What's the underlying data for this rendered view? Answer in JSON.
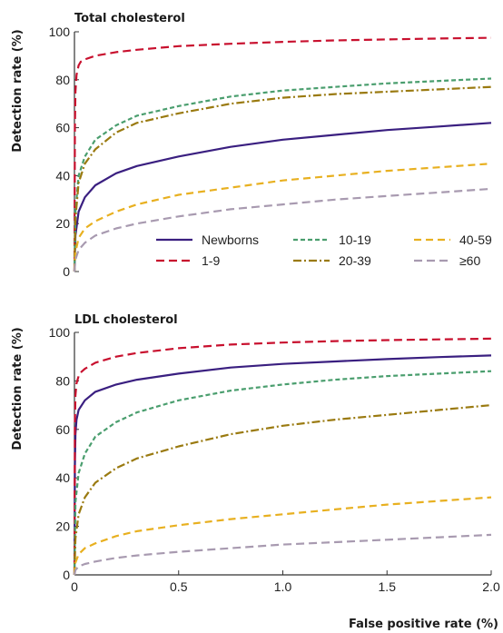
{
  "chart_data": [
    {
      "type": "line",
      "title": "Total cholesterol",
      "xlabel": "",
      "ylabel": "Detection rate (%)",
      "xlim": [
        0,
        2.0
      ],
      "ylim": [
        0,
        100
      ],
      "x_ticks": [
        "0",
        "0.5",
        "1.0",
        "1.5",
        "2.0"
      ],
      "y_ticks": [
        "0",
        "20",
        "40",
        "60",
        "80",
        "100"
      ],
      "grid": false,
      "legend": "bottom-right",
      "series": [
        {
          "name": "Newborns",
          "color": "#3a1f80",
          "dash": "solid",
          "x": [
            0,
            0.005,
            0.02,
            0.05,
            0.1,
            0.2,
            0.3,
            0.5,
            0.75,
            1.0,
            1.25,
            1.5,
            1.75,
            2.0
          ],
          "y": [
            0,
            15,
            25,
            31,
            36,
            41,
            44,
            48,
            52,
            55,
            57,
            59,
            60.5,
            62
          ]
        },
        {
          "name": "1-9",
          "color": "#c8102e",
          "dash": "long-dash",
          "x": [
            0,
            0.002,
            0.005,
            0.01,
            0.02,
            0.03,
            0.05,
            0.1,
            0.2,
            0.3,
            0.5,
            0.75,
            1.0,
            1.25,
            1.5,
            1.75,
            2.0
          ],
          "y": [
            0,
            60,
            75,
            82,
            86,
            87.5,
            88.5,
            90,
            91.5,
            92.5,
            94,
            95,
            95.8,
            96.4,
            96.8,
            97.2,
            97.5
          ]
        },
        {
          "name": "10-19",
          "color": "#4a9e6e",
          "dash": "short-dash",
          "x": [
            0,
            0.005,
            0.02,
            0.05,
            0.1,
            0.2,
            0.3,
            0.5,
            0.75,
            1.0,
            1.25,
            1.5,
            1.75,
            2.0
          ],
          "y": [
            0,
            25,
            40,
            48,
            55,
            61,
            65,
            69,
            73,
            75.5,
            77,
            78.5,
            79.5,
            80.5
          ]
        },
        {
          "name": "20-39",
          "color": "#9a7a10",
          "dash": "dash-dot",
          "x": [
            0,
            0.005,
            0.02,
            0.05,
            0.1,
            0.2,
            0.3,
            0.5,
            0.75,
            1.0,
            1.25,
            1.5,
            1.75,
            2.0
          ],
          "y": [
            0,
            22,
            37,
            45,
            51,
            58,
            62,
            66,
            70,
            72.5,
            74,
            75,
            76,
            77
          ]
        },
        {
          "name": "40-59",
          "color": "#e8b020",
          "dash": "dash",
          "x": [
            0,
            0.005,
            0.02,
            0.05,
            0.1,
            0.2,
            0.3,
            0.5,
            0.75,
            1.0,
            1.25,
            1.5,
            1.75,
            2.0
          ],
          "y": [
            0,
            8,
            14,
            18,
            21,
            25,
            28,
            32,
            35,
            38,
            40,
            42,
            43.5,
            45
          ]
        },
        {
          "name": "≥60",
          "color": "#a89ab0",
          "dash": "long-dash",
          "x": [
            0,
            0.005,
            0.02,
            0.05,
            0.1,
            0.2,
            0.3,
            0.5,
            0.75,
            1.0,
            1.25,
            1.5,
            1.75,
            2.0
          ],
          "y": [
            0,
            5,
            9,
            12,
            15,
            18,
            20,
            23,
            26,
            28,
            30,
            31.5,
            33,
            34.5
          ]
        }
      ]
    },
    {
      "type": "line",
      "title": "LDL cholesterol",
      "xlabel": "False positive rate (%)",
      "ylabel": "Detection rate (%)",
      "xlim": [
        0,
        2.0
      ],
      "ylim": [
        0,
        100
      ],
      "x_ticks": [
        "0",
        "0.5",
        "1.0",
        "1.5",
        "2.0"
      ],
      "y_ticks": [
        "0",
        "20",
        "40",
        "60",
        "80",
        "100"
      ],
      "grid": false,
      "series": [
        {
          "name": "Newborns",
          "color": "#3a1f80",
          "dash": "solid",
          "x": [
            0,
            0.002,
            0.005,
            0.01,
            0.02,
            0.05,
            0.1,
            0.2,
            0.3,
            0.5,
            0.75,
            1.0,
            1.25,
            1.5,
            1.75,
            2.0
          ],
          "y": [
            0,
            45,
            58,
            64,
            68,
            72,
            75.5,
            78.5,
            80.5,
            83,
            85.5,
            87,
            88,
            89,
            89.8,
            90.5
          ]
        },
        {
          "name": "1-9",
          "color": "#c8102e",
          "dash": "long-dash",
          "x": [
            0,
            0.002,
            0.005,
            0.01,
            0.02,
            0.03,
            0.05,
            0.1,
            0.2,
            0.3,
            0.5,
            0.75,
            1.0,
            1.25,
            1.5,
            1.75,
            2.0
          ],
          "y": [
            0,
            62,
            74,
            79,
            82,
            83.5,
            85,
            87.5,
            90,
            91.5,
            93.5,
            95,
            95.8,
            96.4,
            96.8,
            97.1,
            97.4
          ]
        },
        {
          "name": "10-19",
          "color": "#4a9e6e",
          "dash": "short-dash",
          "x": [
            0,
            0.005,
            0.02,
            0.05,
            0.1,
            0.2,
            0.3,
            0.5,
            0.75,
            1.0,
            1.25,
            1.5,
            1.75,
            2.0
          ],
          "y": [
            0,
            30,
            42,
            50,
            57,
            63,
            67,
            72,
            76,
            78.5,
            80.5,
            82,
            83,
            84
          ]
        },
        {
          "name": "20-39",
          "color": "#9a7a10",
          "dash": "dash-dot",
          "x": [
            0,
            0.005,
            0.02,
            0.05,
            0.1,
            0.2,
            0.3,
            0.5,
            0.75,
            1.0,
            1.25,
            1.5,
            1.75,
            2.0
          ],
          "y": [
            0,
            15,
            25,
            32,
            38,
            44,
            48,
            53,
            58,
            61.5,
            64,
            66,
            68,
            70
          ]
        },
        {
          "name": "40-59",
          "color": "#e8b020",
          "dash": "dash",
          "x": [
            0,
            0.005,
            0.02,
            0.05,
            0.1,
            0.2,
            0.3,
            0.5,
            0.75,
            1.0,
            1.25,
            1.5,
            1.75,
            2.0
          ],
          "y": [
            0,
            5,
            8.5,
            11,
            13,
            16,
            18,
            20.5,
            23,
            25,
            27,
            29,
            30.5,
            32
          ]
        },
        {
          "name": "≥60",
          "color": "#a89ab0",
          "dash": "long-dash",
          "x": [
            0,
            0.005,
            0.02,
            0.05,
            0.1,
            0.2,
            0.3,
            0.5,
            0.75,
            1.0,
            1.25,
            1.5,
            1.75,
            2.0
          ],
          "y": [
            0,
            2,
            3.5,
            4.5,
            5.5,
            7,
            8,
            9.5,
            11,
            12.5,
            13.5,
            14.5,
            15.5,
            16.5
          ]
        }
      ]
    }
  ]
}
